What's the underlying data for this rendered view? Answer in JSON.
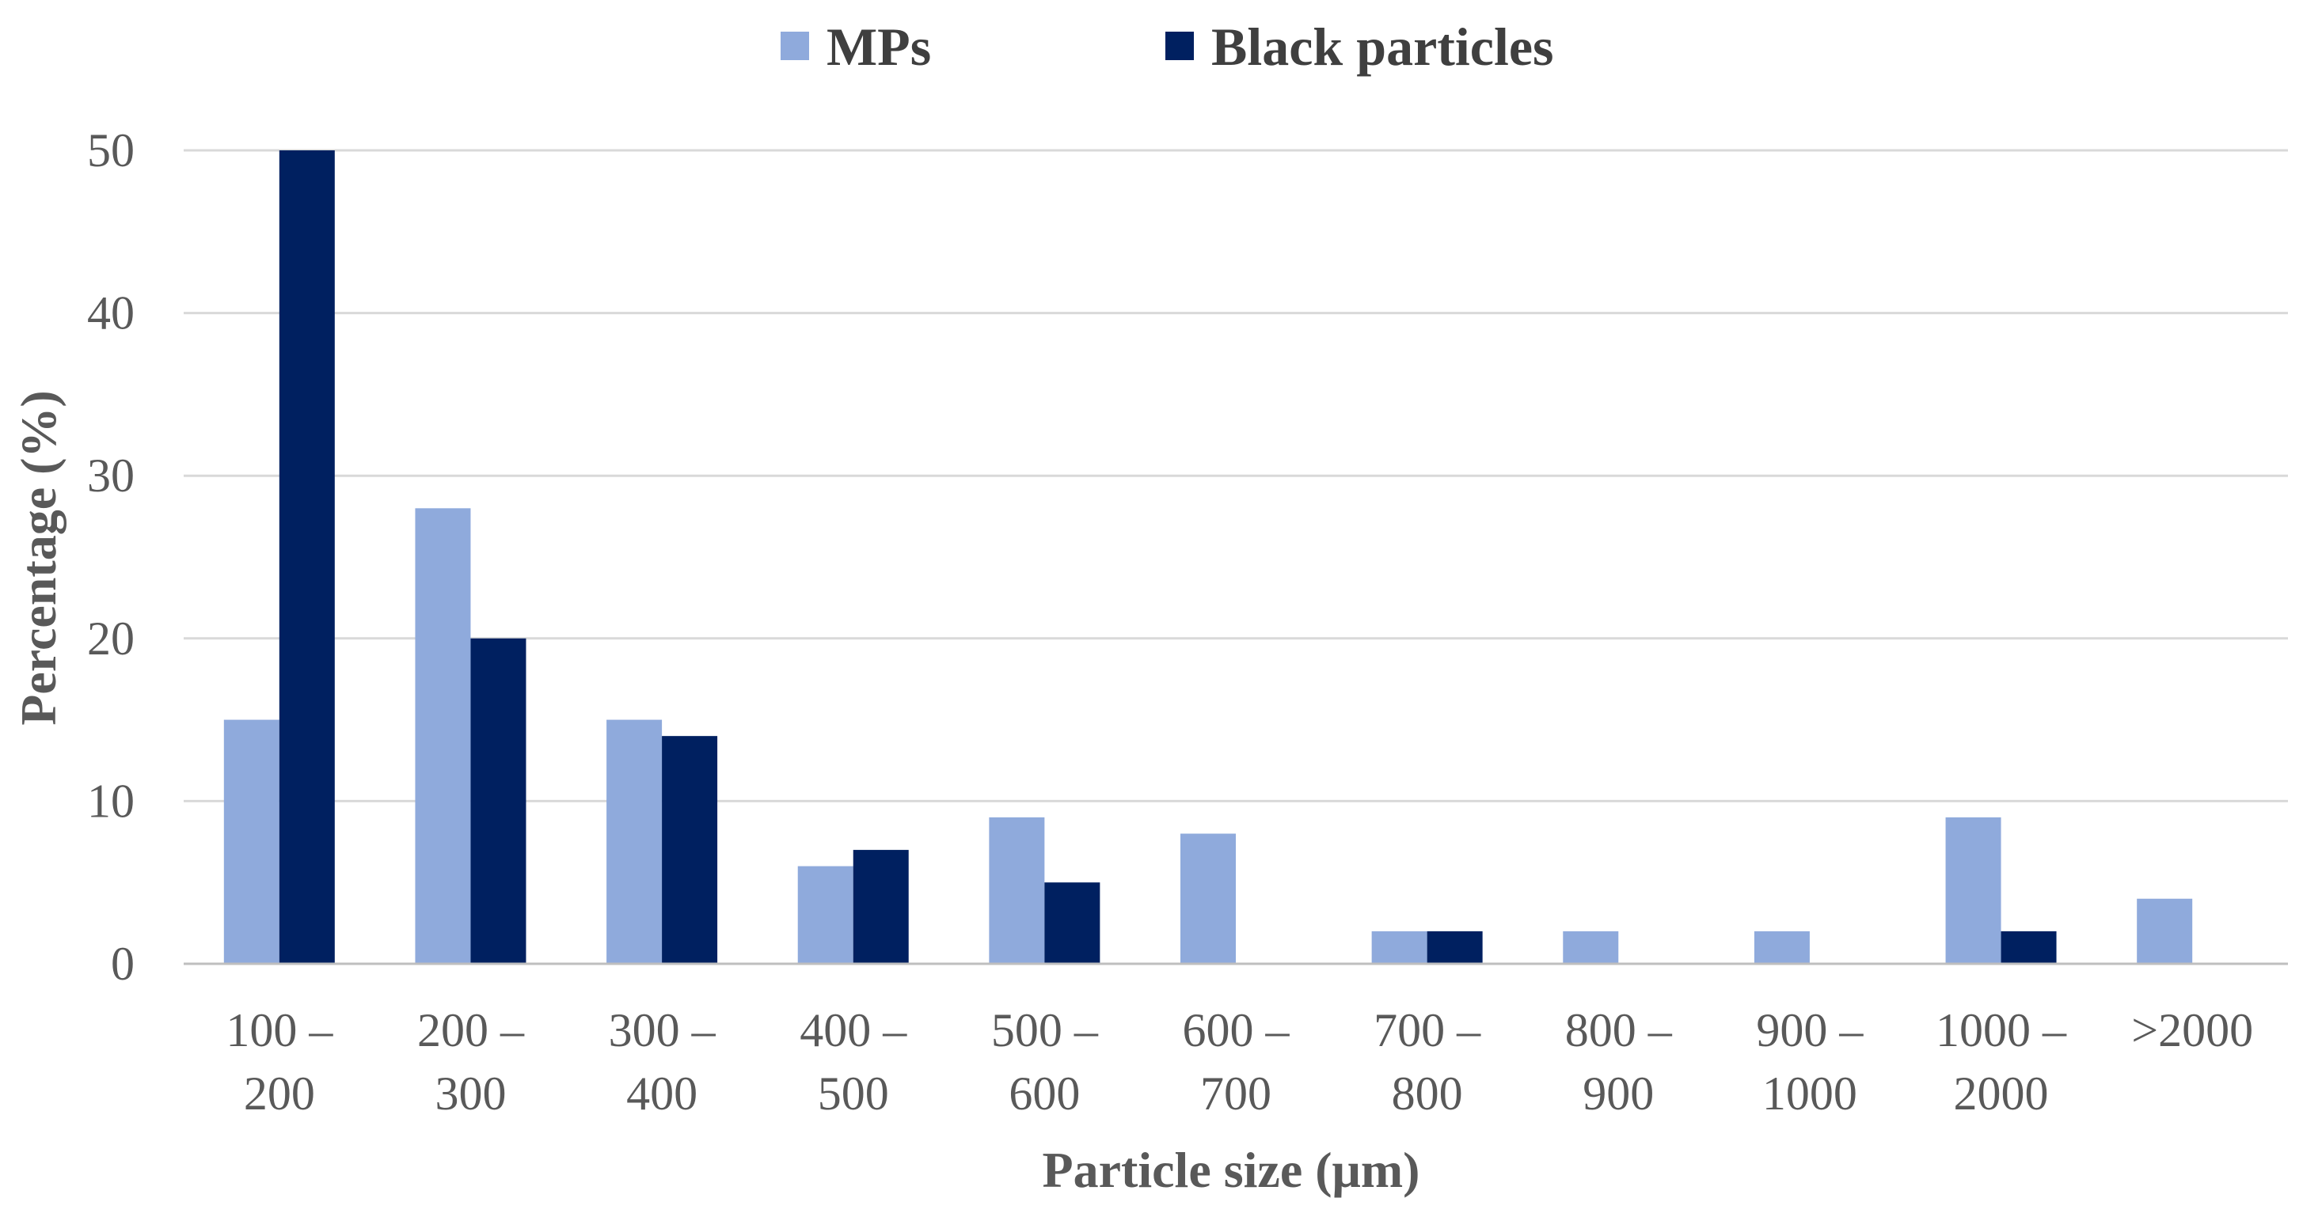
{
  "chart_data": {
    "type": "bar",
    "title": "",
    "xlabel": "Particle size (μm)",
    "ylabel": "Percentage (%)",
    "ylim": [
      0,
      50
    ],
    "yticks": [
      "0",
      "10",
      "20",
      "30",
      "40",
      "50"
    ],
    "grid": true,
    "legend_position": "top-center",
    "categories": [
      [
        "100 –",
        "200"
      ],
      [
        "200 –",
        "300"
      ],
      [
        "300 –",
        "400"
      ],
      [
        "400 –",
        "500"
      ],
      [
        "500 –",
        "600"
      ],
      [
        "600 –",
        "700"
      ],
      [
        "700 –",
        "800"
      ],
      [
        "800 –",
        "900"
      ],
      [
        "900 –",
        "1000"
      ],
      [
        "1000 –",
        "2000"
      ],
      [
        ">2000"
      ]
    ],
    "series": [
      {
        "name": "MPs",
        "color": "#8faadc",
        "values": [
          15,
          28,
          15,
          6,
          9,
          8,
          2,
          2,
          2,
          9,
          4
        ]
      },
      {
        "name": "Black particles",
        "color": "#002060",
        "values": [
          50,
          20,
          14,
          7,
          5,
          0,
          2,
          0,
          0,
          2,
          0
        ]
      }
    ]
  }
}
